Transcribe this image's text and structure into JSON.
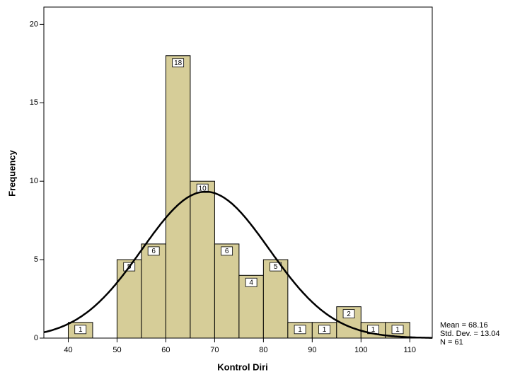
{
  "chart_data": {
    "type": "histogram",
    "x_label": "Kontrol Diri",
    "y_label": "Frequency",
    "bins": [
      40,
      45,
      50,
      55,
      60,
      65,
      70,
      75,
      80,
      85,
      90,
      95,
      100,
      105,
      110
    ],
    "values": [
      1,
      0,
      5,
      6,
      18,
      10,
      6,
      4,
      5,
      1,
      1,
      2,
      1,
      1
    ],
    "value_labels": [
      "1",
      null,
      "5",
      "6",
      "18",
      "10",
      "6",
      "4",
      "5",
      "1",
      "1",
      "2",
      "1",
      "1"
    ],
    "color": "#d6cd98",
    "xlim": [
      35,
      114.6
    ],
    "xticks": [
      40,
      50,
      60,
      70,
      80,
      90,
      100,
      110
    ],
    "ylim": [
      0,
      21.1
    ],
    "yticks": [
      0,
      5,
      10,
      15,
      20
    ],
    "normal_curve": {
      "mean": 68.16,
      "sd": 13.04,
      "n": 61
    },
    "stats": [
      "Mean = 68.16",
      "Std. Dev. = 13.04",
      "N = 61"
    ]
  }
}
